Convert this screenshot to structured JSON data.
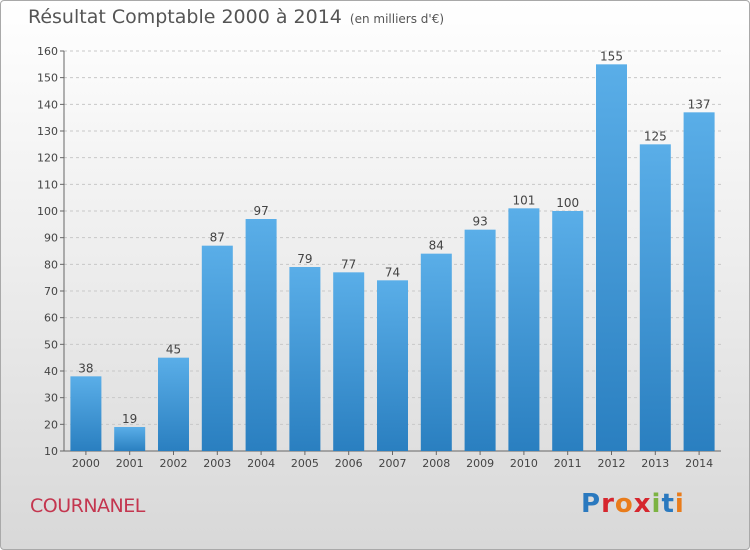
{
  "title": "Résultat Comptable 2000 à 2014",
  "unit_note": "(en milliers d'€)",
  "commune": "COURNANEL",
  "brand": "Proxiti",
  "chart_data": {
    "type": "bar",
    "title": "Résultat Comptable 2000 à 2014",
    "subtitle": "(en milliers d'€)",
    "categories": [
      "2000",
      "2001",
      "2002",
      "2003",
      "2004",
      "2005",
      "2006",
      "2007",
      "2008",
      "2009",
      "2010",
      "2011",
      "2012",
      "2013",
      "2014"
    ],
    "values": [
      38,
      19,
      45,
      87,
      97,
      79,
      77,
      74,
      84,
      93,
      101,
      100,
      155,
      125,
      137
    ],
    "ylim": [
      10,
      160
    ],
    "yticks": [
      10,
      20,
      30,
      40,
      50,
      60,
      70,
      80,
      90,
      100,
      110,
      120,
      130,
      140,
      150,
      160
    ],
    "grid": true,
    "bar_color_top": "#5aaee8",
    "bar_color_bottom": "#2a7fc0"
  }
}
